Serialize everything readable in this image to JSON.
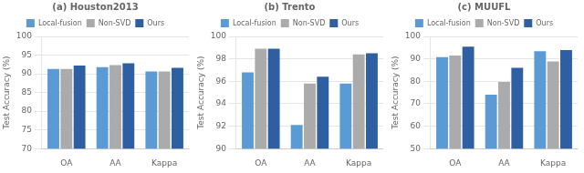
{
  "chart_data": [
    {
      "type": "bar",
      "title": "(a) Houston2013",
      "y_label": "Test Accuracy (%)",
      "categories": [
        "OA",
        "AA",
        "Kappa"
      ],
      "series": [
        {
          "name": "Local-fusion",
          "color": "#5B9BD5",
          "values": [
            91.3,
            91.8,
            90.6
          ]
        },
        {
          "name": "Non-SVD",
          "color": "#ABABAB",
          "values": [
            91.3,
            92.3,
            90.6
          ]
        },
        {
          "name": "Ours",
          "color": "#2E5FA3",
          "values": [
            92.2,
            92.8,
            91.6
          ]
        }
      ],
      "ylim": [
        70,
        100
      ],
      "yticks": [
        70,
        75,
        80,
        85,
        90,
        95,
        100
      ],
      "grid": true,
      "legend": "top"
    },
    {
      "type": "bar",
      "title": "(b) Trento",
      "y_label": "Test Accuracy (%)",
      "categories": [
        "OA",
        "AA",
        "Kappa"
      ],
      "series": [
        {
          "name": "Local-fusion",
          "color": "#5B9BD5",
          "values": [
            96.8,
            92.1,
            95.8
          ]
        },
        {
          "name": "Non-SVD",
          "color": "#ABABAB",
          "values": [
            98.9,
            95.8,
            98.4
          ]
        },
        {
          "name": "Ours",
          "color": "#2E5FA3",
          "values": [
            98.9,
            96.4,
            98.5
          ]
        }
      ],
      "ylim": [
        90,
        100
      ],
      "yticks": [
        90,
        92,
        94,
        96,
        98,
        100
      ],
      "grid": true,
      "legend": "top"
    },
    {
      "type": "bar",
      "title": "(c) MUUFL",
      "y_label": "Test Accuracy (%)",
      "categories": [
        "OA",
        "AA",
        "Kappa"
      ],
      "series": [
        {
          "name": "Local-fusion",
          "color": "#5B9BD5",
          "values": [
            90.8,
            74.0,
            93.4
          ]
        },
        {
          "name": "Non-SVD",
          "color": "#ABABAB",
          "values": [
            91.5,
            79.7,
            88.8
          ]
        },
        {
          "name": "Ours",
          "color": "#2E5FA3",
          "values": [
            95.4,
            86.0,
            93.9
          ]
        }
      ],
      "ylim": [
        50,
        100
      ],
      "yticks": [
        50,
        60,
        70,
        80,
        90,
        100
      ],
      "grid": true,
      "legend": "top"
    }
  ]
}
